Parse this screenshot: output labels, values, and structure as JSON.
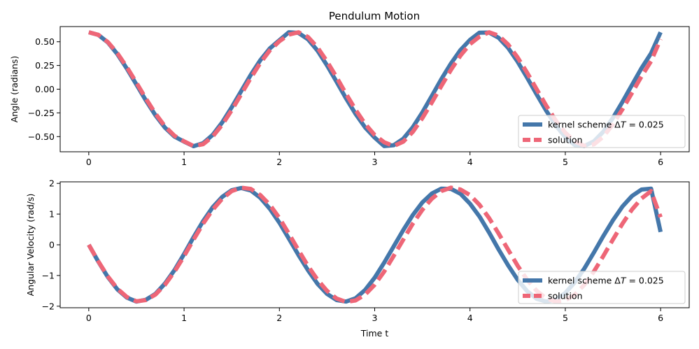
{
  "figure_title": "Pendulum Motion",
  "colors": {
    "kernel": "#4477aa",
    "solution": "#ee6677",
    "axis": "#000000",
    "legend_border": "#cccccc"
  },
  "chart_data": [
    {
      "type": "line",
      "title": "Pendulum Motion",
      "xlabel": "",
      "ylabel": "Angle (radians)",
      "xlim": [
        -0.3,
        6.3
      ],
      "ylim": [
        -0.66,
        0.66
      ],
      "xticks": [
        0,
        1,
        2,
        3,
        4,
        5,
        6
      ],
      "yticks": [
        -0.5,
        -0.25,
        0.0,
        0.25,
        0.5
      ],
      "ytick_labels": [
        "−0.50",
        "−0.25",
        "0.00",
        "0.25",
        "0.50"
      ],
      "grid": false,
      "legend_position": "lower-right",
      "series": [
        {
          "name": "kernel scheme ΔT = 0.025",
          "style": "solid",
          "x": [
            0,
            0.1,
            0.2,
            0.3,
            0.4,
            0.5,
            0.6,
            0.7,
            0.8,
            0.9,
            1.0,
            1.1,
            1.2,
            1.3,
            1.4,
            1.5,
            1.6,
            1.7,
            1.8,
            1.9,
            2.0,
            2.1,
            2.2,
            2.3,
            2.4,
            2.5,
            2.6,
            2.7,
            2.8,
            2.9,
            3.0,
            3.1,
            3.2,
            3.3,
            3.4,
            3.5,
            3.6,
            3.7,
            3.8,
            3.9,
            4.0,
            4.1,
            4.2,
            4.3,
            4.4,
            4.5,
            4.6,
            4.7,
            4.8,
            4.9,
            5.0,
            5.1,
            5.2,
            5.3,
            5.4,
            5.5,
            5.6,
            5.7,
            5.8,
            5.9,
            6.0
          ],
          "y": [
            0.6,
            0.572,
            0.493,
            0.37,
            0.217,
            0.049,
            -0.12,
            -0.276,
            -0.406,
            -0.501,
            -0.553,
            -0.601,
            -0.57,
            -0.482,
            -0.35,
            -0.19,
            -0.019,
            0.151,
            0.305,
            0.43,
            0.516,
            0.6,
            0.594,
            0.526,
            0.406,
            0.251,
            0.078,
            -0.097,
            -0.262,
            -0.404,
            -0.511,
            -0.6,
            -0.591,
            -0.522,
            -0.401,
            -0.245,
            -0.071,
            0.106,
            0.271,
            0.413,
            0.52,
            0.596,
            0.597,
            0.542,
            0.436,
            0.29,
            0.121,
            -0.056,
            -0.228,
            -0.382,
            -0.505,
            -0.59,
            -0.599,
            -0.55,
            -0.447,
            -0.302,
            -0.133,
            0.046,
            0.222,
            0.378,
            0.6
          ]
        },
        {
          "name": "solution",
          "style": "dashed",
          "x": [
            0,
            0.1,
            0.2,
            0.3,
            0.4,
            0.5,
            0.6,
            0.7,
            0.8,
            0.9,
            1.0,
            1.1,
            1.2,
            1.3,
            1.4,
            1.5,
            1.6,
            1.7,
            1.8,
            1.9,
            2.0,
            2.1,
            2.2,
            2.3,
            2.4,
            2.5,
            2.6,
            2.7,
            2.8,
            2.9,
            3.0,
            3.1,
            3.2,
            3.3,
            3.4,
            3.5,
            3.6,
            3.7,
            3.8,
            3.9,
            4.0,
            4.1,
            4.2,
            4.3,
            4.4,
            4.5,
            4.6,
            4.7,
            4.8,
            4.9,
            5.0,
            5.1,
            5.2,
            5.3,
            5.4,
            5.5,
            5.6,
            5.7,
            5.8,
            5.9,
            6.0
          ],
          "y": [
            0.6,
            0.573,
            0.497,
            0.38,
            0.232,
            0.068,
            -0.1,
            -0.258,
            -0.392,
            -0.492,
            -0.55,
            -0.6,
            -0.58,
            -0.5,
            -0.375,
            -0.221,
            -0.052,
            0.118,
            0.276,
            0.41,
            0.506,
            0.575,
            0.6,
            0.55,
            0.44,
            0.293,
            0.126,
            -0.049,
            -0.218,
            -0.367,
            -0.484,
            -0.56,
            -0.6,
            -0.553,
            -0.45,
            -0.305,
            -0.14,
            0.034,
            0.204,
            0.355,
            0.475,
            0.554,
            0.6,
            0.565,
            0.471,
            0.334,
            0.173,
            -0.002,
            -0.174,
            -0.33,
            -0.459,
            -0.55,
            -0.598,
            -0.582,
            -0.5,
            -0.37,
            -0.211,
            -0.038,
            0.136,
            0.296,
            0.528
          ]
        }
      ]
    },
    {
      "type": "line",
      "title": "",
      "xlabel": "Time t",
      "ylabel": "Angular Velocity (rad/s)",
      "xlim": [
        -0.3,
        6.3
      ],
      "ylim": [
        -2.05,
        2.05
      ],
      "xticks": [
        0,
        1,
        2,
        3,
        4,
        5,
        6
      ],
      "yticks": [
        -2,
        -1,
        0,
        1,
        2
      ],
      "ytick_labels": [
        "−2",
        "−1",
        "0",
        "1",
        "2"
      ],
      "grid": false,
      "legend_position": "lower-right",
      "series": [
        {
          "name": "kernel scheme ΔT = 0.025",
          "style": "solid",
          "x": [
            0,
            0.1,
            0.2,
            0.3,
            0.4,
            0.5,
            0.6,
            0.7,
            0.8,
            0.9,
            1.0,
            1.1,
            1.2,
            1.3,
            1.4,
            1.5,
            1.6,
            1.7,
            1.8,
            1.9,
            2.0,
            2.1,
            2.2,
            2.3,
            2.4,
            2.5,
            2.6,
            2.7,
            2.8,
            2.9,
            3.0,
            3.1,
            3.2,
            3.3,
            3.4,
            3.5,
            3.6,
            3.7,
            3.8,
            3.9,
            4.0,
            4.1,
            4.2,
            4.3,
            4.4,
            4.5,
            4.6,
            4.7,
            4.8,
            4.9,
            5.0,
            5.1,
            5.2,
            5.3,
            5.4,
            5.5,
            5.6,
            5.7,
            5.8,
            5.9,
            6.0
          ],
          "y": [
            0.0,
            -0.55,
            -1.05,
            -1.45,
            -1.72,
            -1.85,
            -1.79,
            -1.6,
            -1.26,
            -0.82,
            -0.3,
            0.25,
            0.77,
            1.22,
            1.56,
            1.78,
            1.85,
            1.77,
            1.53,
            1.17,
            0.72,
            0.2,
            -0.33,
            -0.83,
            -1.27,
            -1.6,
            -1.8,
            -1.85,
            -1.74,
            -1.47,
            -1.07,
            -0.58,
            -0.05,
            0.48,
            0.97,
            1.38,
            1.67,
            1.83,
            1.82,
            1.66,
            1.34,
            0.92,
            0.4,
            -0.15,
            -0.67,
            -1.14,
            -1.51,
            -1.76,
            -1.85,
            -1.79,
            -1.57,
            -1.22,
            -0.77,
            -0.25,
            0.29,
            0.8,
            1.25,
            1.59,
            1.8,
            1.83,
            0.42
          ]
        },
        {
          "name": "solution",
          "style": "dashed",
          "x": [
            0,
            0.1,
            0.2,
            0.3,
            0.4,
            0.5,
            0.6,
            0.7,
            0.8,
            0.9,
            1.0,
            1.1,
            1.2,
            1.3,
            1.4,
            1.5,
            1.6,
            1.7,
            1.8,
            1.9,
            2.0,
            2.1,
            2.2,
            2.3,
            2.4,
            2.5,
            2.6,
            2.7,
            2.8,
            2.9,
            3.0,
            3.1,
            3.2,
            3.3,
            3.4,
            3.5,
            3.6,
            3.7,
            3.8,
            3.9,
            4.0,
            4.1,
            4.2,
            4.3,
            4.4,
            4.5,
            4.6,
            4.7,
            4.8,
            4.9,
            5.0,
            5.1,
            5.2,
            5.3,
            5.4,
            5.5,
            5.6,
            5.7,
            5.8,
            5.9,
            6.0
          ],
          "y": [
            0.0,
            -0.54,
            -1.03,
            -1.43,
            -1.7,
            -1.84,
            -1.8,
            -1.62,
            -1.3,
            -0.87,
            -0.37,
            0.17,
            0.69,
            1.14,
            1.5,
            1.75,
            1.86,
            1.82,
            1.62,
            1.3,
            0.87,
            0.36,
            -0.17,
            -0.69,
            -1.14,
            -1.5,
            -1.75,
            -1.86,
            -1.81,
            -1.62,
            -1.3,
            -0.87,
            -0.36,
            0.17,
            0.69,
            1.14,
            1.5,
            1.75,
            1.86,
            1.8,
            1.62,
            1.3,
            0.87,
            0.37,
            -0.16,
            -0.68,
            -1.14,
            -1.5,
            -1.75,
            -1.85,
            -1.81,
            -1.62,
            -1.3,
            -0.87,
            -0.36,
            0.17,
            0.69,
            1.15,
            1.51,
            1.75,
            0.9
          ]
        }
      ]
    }
  ]
}
